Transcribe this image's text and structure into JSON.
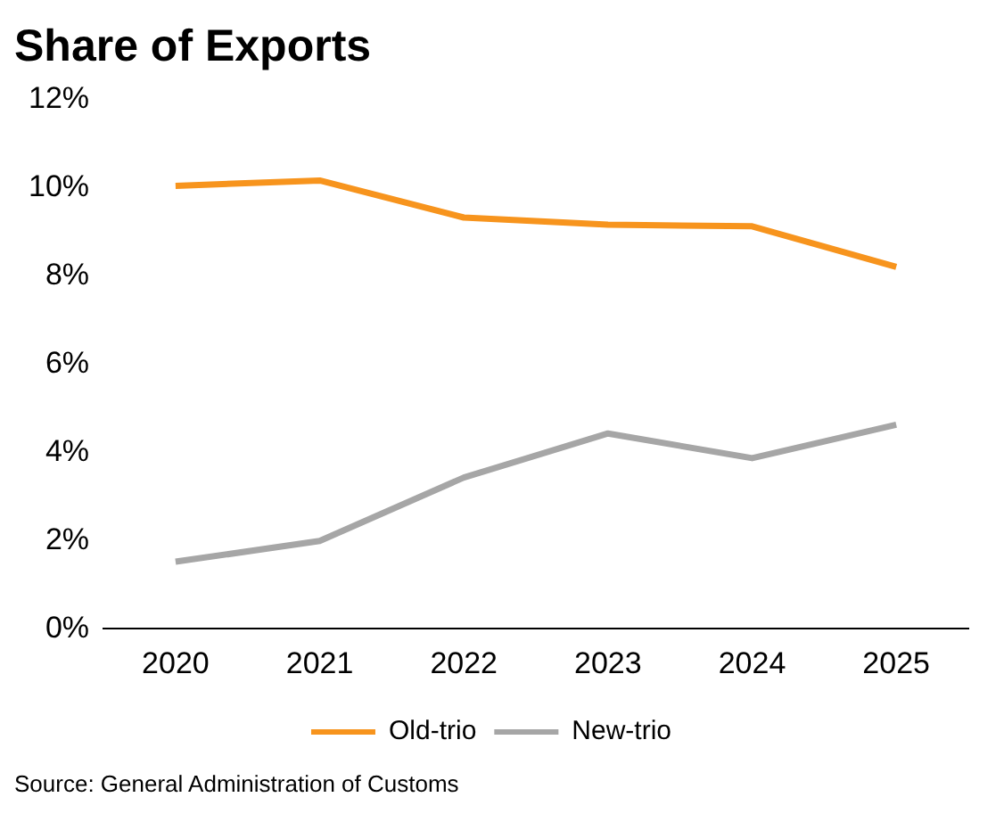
{
  "chart_data": {
    "type": "line",
    "title": "Share of Exports",
    "categories": [
      "2020",
      "2021",
      "2022",
      "2023",
      "2024",
      "2025"
    ],
    "series": [
      {
        "name": "Old-trio",
        "color": "#f7941d",
        "values": [
          10.05,
          10.17,
          9.33,
          9.17,
          9.13,
          8.21
        ]
      },
      {
        "name": "New-trio",
        "color": "#a6a6a6",
        "values": [
          1.52,
          1.99,
          3.43,
          4.43,
          3.87,
          4.63
        ]
      }
    ],
    "ylim": [
      0,
      12
    ],
    "yticks": [
      {
        "value": 0,
        "label": "0%"
      },
      {
        "value": 2,
        "label": "2%"
      },
      {
        "value": 4,
        "label": "4%"
      },
      {
        "value": 6,
        "label": "6%"
      },
      {
        "value": 8,
        "label": "8%"
      },
      {
        "value": 10,
        "label": "10%"
      },
      {
        "value": 12,
        "label": "12%"
      }
    ],
    "grid": false,
    "legend": "bottom",
    "marker": "none",
    "line_style": "solid",
    "annotations": [
      "Source: General Administration of Customs"
    ]
  }
}
